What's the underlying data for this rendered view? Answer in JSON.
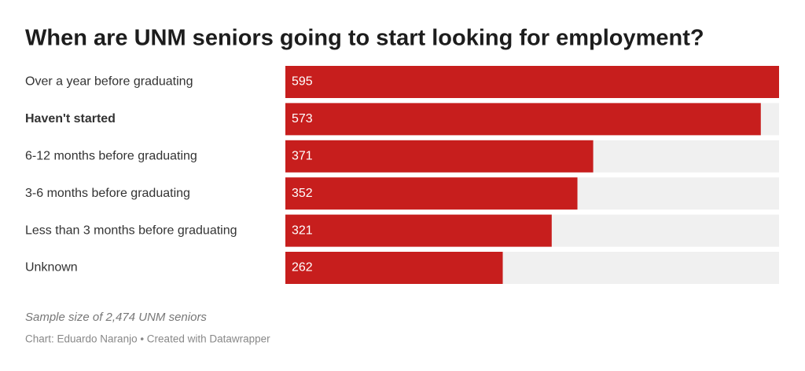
{
  "chart_data": {
    "type": "bar",
    "orientation": "horizontal",
    "title": "When are UNM seniors going to start looking for employment?",
    "categories": [
      "Over a year before graduating",
      "Haven't started",
      "6-12 months before graduating",
      "3-6 months before graduating",
      "Less than 3 months before graduating",
      "Unknown"
    ],
    "values": [
      595,
      573,
      371,
      352,
      321,
      262
    ],
    "color": "#c71e1d",
    "track_color": "#f0f0f0",
    "xlim": [
      0,
      595
    ],
    "highlight_categories": [
      "Haven't started"
    ],
    "notes": "Sample size of 2,474 UNM seniors",
    "source": "Chart: Eduardo Naranjo • Created with Datawrapper"
  }
}
